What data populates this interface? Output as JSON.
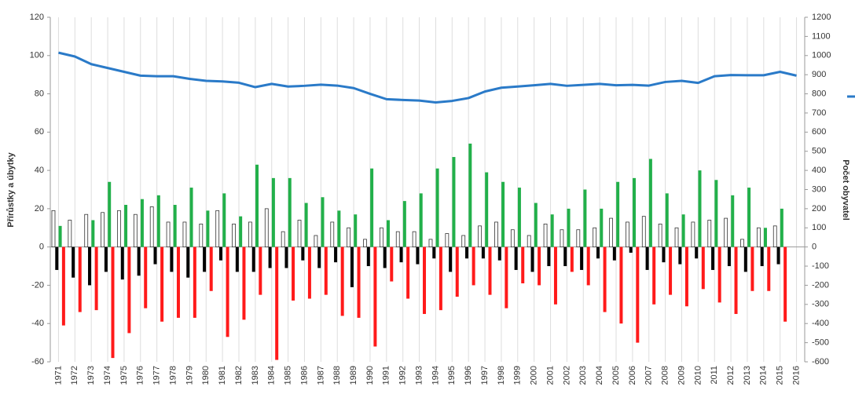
{
  "chart_data": {
    "type": "bar",
    "y_label": "Přírůstky a úbytky",
    "y2_label": "Počet obyvatel",
    "categories": [
      "1971",
      "1972",
      "1973",
      "1974",
      "1975",
      "1976",
      "1977",
      "1978",
      "1979",
      "1980",
      "1981",
      "1982",
      "1983",
      "1984",
      "1985",
      "1986",
      "1987",
      "1988",
      "1989",
      "1990",
      "1991",
      "1992",
      "1993",
      "1994",
      "1995",
      "1996",
      "1997",
      "1998",
      "1999",
      "2000",
      "2001",
      "2002",
      "2003",
      "2004",
      "2005",
      "2006",
      "2007",
      "2008",
      "2009",
      "2010",
      "2011",
      "2012",
      "2013",
      "2014",
      "2015",
      "2016"
    ],
    "series": [
      {
        "type": "bar",
        "color": "#ffffff",
        "stroke": "#333333",
        "values": [
          19,
          14,
          17,
          18,
          19,
          17,
          21,
          13,
          13,
          12,
          19,
          12,
          13,
          20,
          8,
          14,
          6,
          13,
          10,
          4,
          10,
          8,
          8,
          4,
          7,
          6,
          11,
          13,
          9,
          6,
          12,
          9,
          9,
          10,
          15,
          13,
          16,
          12,
          10,
          13,
          14,
          15,
          4,
          10,
          11,
          null
        ]
      },
      {
        "type": "bar",
        "color": "#000000",
        "values": [
          -12,
          -16,
          -20,
          -13,
          -17,
          -15,
          -9,
          -13,
          -16,
          -13,
          -7,
          -13,
          -13,
          -11,
          -11,
          -7,
          -11,
          -8,
          -21,
          -10,
          -11,
          -8,
          -9,
          -6,
          -13,
          -6,
          -6,
          -7,
          -12,
          -13,
          -10,
          -10,
          -12,
          -6,
          -7,
          -3,
          -12,
          -8,
          -9,
          -6,
          -12,
          -10,
          -13,
          -10,
          -9,
          null
        ]
      },
      {
        "type": "bar",
        "color": "#22b04a",
        "values": [
          11,
          0,
          14,
          34,
          22,
          25,
          27,
          22,
          31,
          19,
          28,
          16,
          43,
          36,
          36,
          23,
          26,
          19,
          17,
          41,
          14,
          24,
          28,
          41,
          47,
          54,
          39,
          34,
          31,
          23,
          17,
          20,
          30,
          20,
          34,
          36,
          46,
          28,
          17,
          40,
          35,
          27,
          31,
          10,
          20,
          null
        ]
      },
      {
        "type": "bar",
        "color": "#ff1a1a",
        "values": [
          -41,
          -34,
          -33,
          -58,
          -45,
          -32,
          -39,
          -37,
          -37,
          -23,
          -47,
          -38,
          -25,
          -59,
          -28,
          -27,
          -25,
          -36,
          -37,
          -52,
          -18,
          -27,
          -35,
          -33,
          -26,
          -20,
          -25,
          -32,
          -19,
          -20,
          -30,
          -13,
          -20,
          -34,
          -40,
          -50,
          -30,
          -25,
          -31,
          -22,
          -29,
          -35,
          -23,
          -23,
          -39,
          null
        ]
      },
      {
        "type": "line",
        "axis": "y2",
        "color": "#2a7ac8",
        "values": [
          1015,
          995,
          955,
          935,
          915,
          895,
          892,
          892,
          878,
          868,
          865,
          858,
          835,
          852,
          838,
          842,
          848,
          843,
          830,
          800,
          772,
          768,
          765,
          755,
          763,
          778,
          812,
          832,
          838,
          845,
          852,
          842,
          847,
          852,
          845,
          847,
          843,
          862,
          868,
          857,
          892,
          898,
          897,
          897,
          915,
          895
        ]
      }
    ],
    "ylim": [
      -60,
      120
    ],
    "yticks": [
      -60,
      -40,
      -20,
      0,
      20,
      40,
      60,
      80,
      100,
      120
    ],
    "y2lim": [
      -600,
      1200
    ],
    "y2ticks": [
      -600,
      -500,
      -400,
      -300,
      -200,
      -100,
      0,
      100,
      200,
      300,
      400,
      500,
      600,
      700,
      800,
      900,
      1000,
      1100,
      1200
    ],
    "grid": "x"
  }
}
